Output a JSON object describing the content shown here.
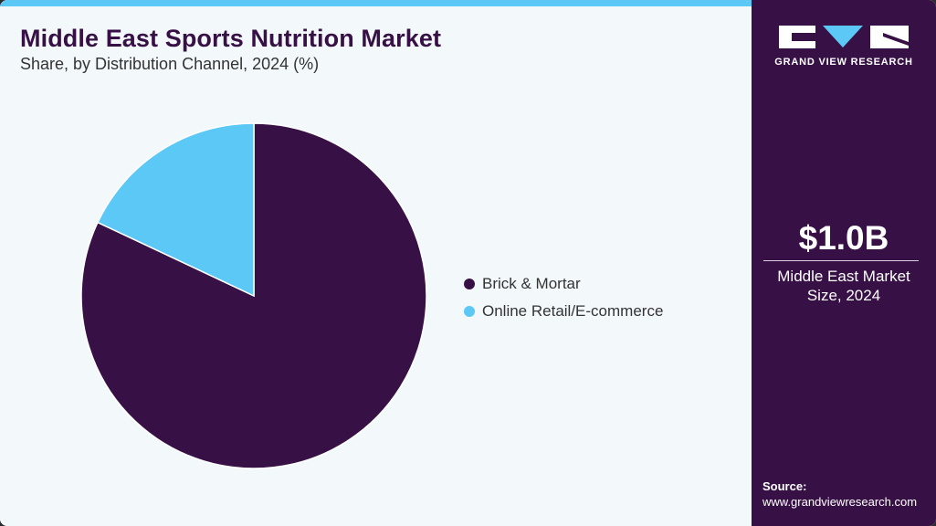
{
  "header": {
    "title": "Middle East Sports Nutrition Market",
    "subtitle": "Share, by Distribution Channel, 2024 (%)"
  },
  "legend": {
    "items": [
      {
        "label": "Brick & Mortar",
        "color": "#371145"
      },
      {
        "label": "Online Retail/E-commerce",
        "color": "#5bc8f5"
      }
    ]
  },
  "sidebar": {
    "logo_text": "GRAND VIEW RESEARCH",
    "market_value": "$1.0B",
    "market_label_line1": "Middle East Market",
    "market_label_line2": "Size, 2024",
    "source_label": "Source:",
    "source_url": "www.grandviewresearch.com"
  },
  "colors": {
    "brand_dark": "#371145",
    "accent": "#5bc8f5",
    "background": "#f3f8fb"
  },
  "chart_data": {
    "type": "pie",
    "title": "Middle East Sports Nutrition Market",
    "subtitle": "Share, by Distribution Channel, 2024 (%)",
    "categories": [
      "Brick & Mortar",
      "Online Retail/E-commerce"
    ],
    "values": [
      82,
      18
    ],
    "colors": [
      "#371145",
      "#5bc8f5"
    ],
    "legend_position": "right",
    "start_angle": "12 o'clock, online slice counter-clockwise"
  }
}
